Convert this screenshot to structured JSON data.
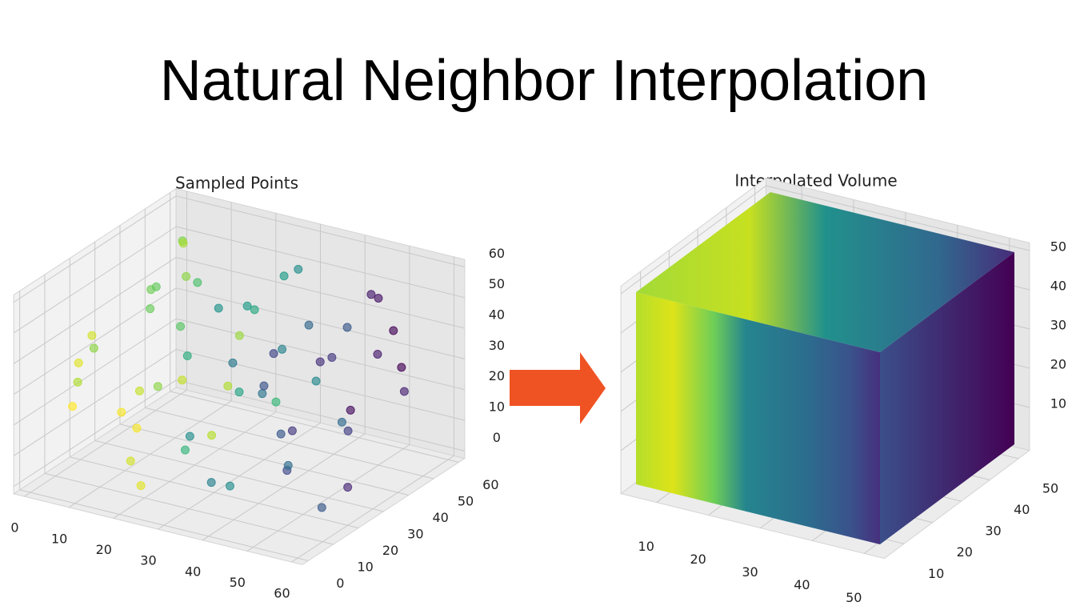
{
  "title": "Natural Neighbor Interpolation",
  "chart_data": [
    {
      "type": "scatter3d",
      "title": "Sampled Points",
      "colormap": "viridis",
      "xlim": [
        0,
        60
      ],
      "ylim": [
        0,
        60
      ],
      "zlim": [
        0,
        60
      ],
      "xticks": [
        0,
        10,
        20,
        30,
        40,
        50,
        60
      ],
      "yticks": [
        0,
        10,
        20,
        30,
        40,
        50,
        60
      ],
      "zticks": [
        0,
        10,
        20,
        30,
        40,
        50,
        60
      ],
      "grid": true,
      "x": [
        5,
        3,
        8,
        10,
        12,
        15,
        6,
        18,
        20,
        14,
        22,
        25,
        28,
        30,
        32,
        26,
        35,
        38,
        40,
        42,
        45,
        48,
        50,
        52,
        55,
        58,
        60,
        47,
        44,
        36,
        2,
        7,
        16,
        19,
        24,
        29,
        33,
        37,
        41,
        46,
        51,
        56,
        59,
        4,
        9,
        13,
        21,
        27,
        31,
        34,
        39,
        43,
        49,
        53,
        57,
        11,
        17,
        23,
        54,
        1
      ],
      "y": [
        10,
        20,
        5,
        30,
        15,
        40,
        50,
        8,
        25,
        35,
        5,
        45,
        12,
        30,
        50,
        55,
        10,
        25,
        40,
        5,
        20,
        35,
        50,
        10,
        30,
        45,
        20,
        55,
        15,
        50,
        40,
        30,
        55,
        45,
        20,
        35,
        5,
        15,
        30,
        45,
        25,
        5,
        40,
        55,
        45,
        25,
        35,
        50,
        20,
        40,
        55,
        50,
        10,
        55,
        15,
        5,
        20,
        10,
        40,
        15
      ],
      "z": [
        30,
        35,
        40,
        45,
        20,
        50,
        55,
        10,
        28,
        38,
        5,
        42,
        15,
        25,
        55,
        48,
        8,
        30,
        45,
        12,
        22,
        40,
        52,
        18,
        28,
        35,
        10,
        30,
        40,
        20,
        10,
        5,
        25,
        15,
        40,
        50,
        25,
        45,
        5,
        10,
        45,
        35,
        50,
        40,
        58,
        55,
        5,
        10,
        58,
        35,
        5,
        40,
        55,
        20,
        5,
        50,
        60,
        35,
        60,
        18
      ],
      "values": [
        85,
        80,
        92,
        75,
        95,
        70,
        78,
        90,
        88,
        72,
        92,
        60,
        65,
        58,
        50,
        55,
        45,
        40,
        35,
        50,
        30,
        20,
        10,
        25,
        8,
        5,
        15,
        12,
        28,
        48,
        88,
        95,
        82,
        85,
        62,
        55,
        50,
        42,
        38,
        22,
        18,
        20,
        6,
        80,
        84,
        76,
        86,
        66,
        52,
        46,
        36,
        30,
        24,
        14,
        30,
        90,
        74,
        80,
        12,
        96
      ]
    },
    {
      "type": "volume",
      "title": "Interpolated Volume",
      "colormap": "viridis",
      "xlim": [
        5,
        52
      ],
      "ylim": [
        5,
        52
      ],
      "zlim": [
        1,
        50
      ],
      "xticks": [
        10,
        20,
        30,
        40,
        50
      ],
      "yticks": [
        10,
        20,
        30,
        40,
        50
      ],
      "zticks": [
        10,
        20,
        30,
        40,
        50
      ],
      "grid": true
    }
  ]
}
